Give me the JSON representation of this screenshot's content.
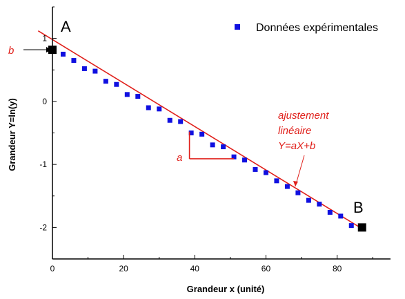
{
  "chart_data": {
    "type": "scatter",
    "xlabel": "Grandeur x (unité)",
    "ylabel": "Grandeur Y=ln(y)",
    "xlim": [
      0,
      95
    ],
    "ylim": [
      -2.5,
      1.5
    ],
    "x_ticks": [
      0,
      20,
      40,
      60,
      80
    ],
    "y_ticks": [
      1,
      0,
      -1,
      -2
    ],
    "grid": false,
    "legend_position": "top-right",
    "series": [
      {
        "name": "Données expérimentales",
        "color": "#1010e0",
        "marker": "square",
        "points": [
          {
            "x": 0,
            "y": 0.82
          },
          {
            "x": 3,
            "y": 0.75
          },
          {
            "x": 6,
            "y": 0.65
          },
          {
            "x": 9,
            "y": 0.52
          },
          {
            "x": 12,
            "y": 0.48
          },
          {
            "x": 15,
            "y": 0.32
          },
          {
            "x": 18,
            "y": 0.27
          },
          {
            "x": 21,
            "y": 0.11
          },
          {
            "x": 24,
            "y": 0.08
          },
          {
            "x": 27,
            "y": -0.1
          },
          {
            "x": 30,
            "y": -0.12
          },
          {
            "x": 33,
            "y": -0.3
          },
          {
            "x": 36,
            "y": -0.32
          },
          {
            "x": 39,
            "y": -0.5
          },
          {
            "x": 42,
            "y": -0.52
          },
          {
            "x": 45,
            "y": -0.69
          },
          {
            "x": 48,
            "y": -0.72
          },
          {
            "x": 51,
            "y": -0.88
          },
          {
            "x": 54,
            "y": -0.93
          },
          {
            "x": 57,
            "y": -1.08
          },
          {
            "x": 60,
            "y": -1.13
          },
          {
            "x": 63,
            "y": -1.26
          },
          {
            "x": 66,
            "y": -1.35
          },
          {
            "x": 69,
            "y": -1.45
          },
          {
            "x": 72,
            "y": -1.57
          },
          {
            "x": 75,
            "y": -1.63
          },
          {
            "x": 78,
            "y": -1.76
          },
          {
            "x": 81,
            "y": -1.82
          },
          {
            "x": 84,
            "y": -1.97
          },
          {
            "x": 87,
            "y": -2.0
          }
        ]
      }
    ],
    "fit_line": {
      "label_lines": [
        "ajustement",
        "linéaire",
        "Y=aX+b"
      ],
      "color": "#e0201b",
      "x": [
        -4,
        87
      ],
      "y": [
        1.12,
        -2.02
      ]
    },
    "annotations": {
      "point_A": {
        "text": "A",
        "x": 0,
        "y": 0.82
      },
      "point_B": {
        "text": "B",
        "x": 87,
        "y": -2.0
      },
      "intercept_label": "b",
      "slope_label": "a",
      "slope_triangle": {
        "x1": 38.5,
        "x2": 51,
        "y_top": -0.48,
        "y_bottom": -0.91
      }
    }
  }
}
